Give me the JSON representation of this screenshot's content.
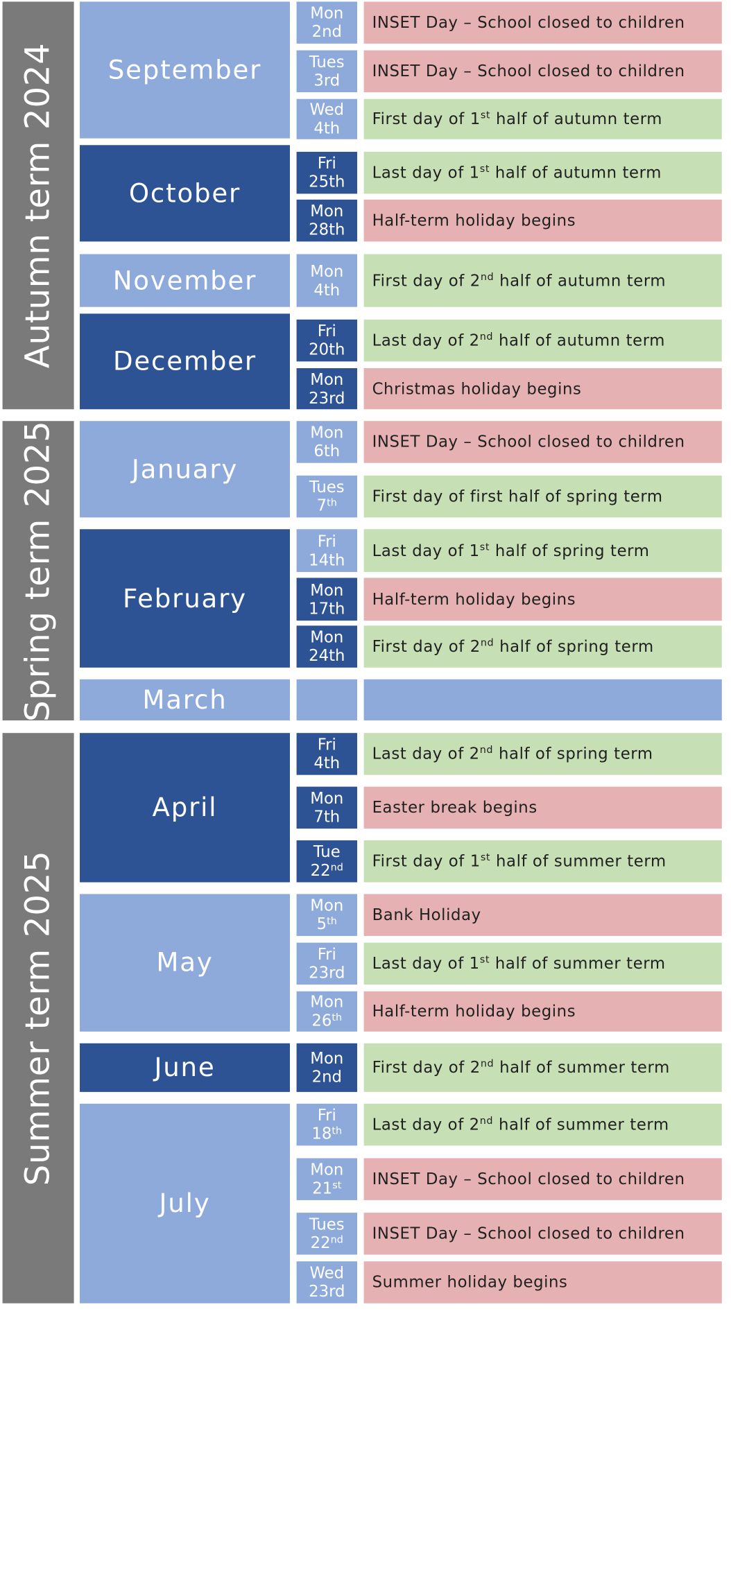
{
  "terms": [
    {
      "label": "Autumn term 2024"
    },
    {
      "label": "Spring term 2025"
    },
    {
      "label": "Summer term 2025"
    }
  ],
  "months": [
    "September",
    "October",
    "November",
    "December",
    "January",
    "February",
    "March",
    "April",
    "May",
    "June",
    "July"
  ],
  "rows": [
    {
      "dow": "Mon",
      "date": "2nd",
      "sup": "",
      "event": [
        "INSET Day – School closed to children"
      ],
      "type": "holiday"
    },
    {
      "dow": "Tues",
      "date": "3rd",
      "sup": "",
      "event": [
        "INSET Day – School closed to children"
      ],
      "type": "holiday"
    },
    {
      "dow": "Wed",
      "date": "4th",
      "sup": "",
      "event": [
        "First day of 1",
        "st",
        " half of autumn term"
      ],
      "type": "school"
    },
    {
      "dow": "Fri",
      "date": "25th",
      "sup": "",
      "event": [
        "Last day of 1",
        "st",
        " half of autumn term"
      ],
      "type": "school"
    },
    {
      "dow": "Mon",
      "date": "28th",
      "sup": "",
      "event": [
        "Half-term holiday begins"
      ],
      "type": "holiday"
    },
    {
      "dow": "Mon",
      "date": "4th",
      "sup": "",
      "event": [
        "First day of 2",
        "nd",
        " half of autumn term"
      ],
      "type": "school"
    },
    {
      "dow": "Fri",
      "date": "20th",
      "sup": "",
      "event": [
        "Last day of 2",
        "nd",
        " half of autumn term"
      ],
      "type": "school"
    },
    {
      "dow": "Mon",
      "date": "23rd",
      "sup": "",
      "event": [
        "Christmas holiday begins"
      ],
      "type": "holiday"
    },
    {
      "dow": "Mon",
      "date": "6th",
      "sup": "",
      "event": [
        "INSET Day – School closed to children"
      ],
      "type": "holiday"
    },
    {
      "dow": "Tues",
      "date": "7",
      "sup": "th",
      "event": [
        "First day of first half of spring term"
      ],
      "type": "school"
    },
    {
      "dow": "Fri",
      "date": "14th",
      "sup": "",
      "event": [
        "Last day of 1",
        "st",
        " half of spring term"
      ],
      "type": "school"
    },
    {
      "dow": "Mon",
      "date": "17th",
      "sup": "",
      "event": [
        "Half-term holiday begins"
      ],
      "type": "holiday"
    },
    {
      "dow": "Mon",
      "date": "24th",
      "sup": "",
      "event": [
        "First day of 2",
        "nd",
        " half of spring term"
      ],
      "type": "school"
    },
    {
      "dow": "",
      "date": "",
      "sup": "",
      "event": [
        ""
      ],
      "type": "blank"
    },
    {
      "dow": "Fri",
      "date": "4th",
      "sup": "",
      "event": [
        "Last day of 2",
        "nd",
        " half of spring term"
      ],
      "type": "school"
    },
    {
      "dow": "Mon",
      "date": "7th",
      "sup": "",
      "event": [
        "Easter break begins"
      ],
      "type": "holiday"
    },
    {
      "dow": "Tue",
      "date": "22",
      "sup": "nd",
      "event": [
        "First day of 1",
        "st",
        " half of summer term"
      ],
      "type": "school"
    },
    {
      "dow": "Mon",
      "date": "5",
      "sup": "th",
      "event": [
        "Bank Holiday"
      ],
      "type": "holiday"
    },
    {
      "dow": "Fri",
      "date": "23rd",
      "sup": "",
      "event": [
        "Last day of 1",
        "st",
        " half of summer term"
      ],
      "type": "school"
    },
    {
      "dow": "Mon",
      "date": "26",
      "sup": "th",
      "event": [
        "Half-term holiday begins"
      ],
      "type": "holiday"
    },
    {
      "dow": "Mon",
      "date": "2nd",
      "sup": "",
      "event": [
        "First day of 2",
        "nd",
        " half of summer term"
      ],
      "type": "school"
    },
    {
      "dow": "Fri",
      "date": "18",
      "sup": "th",
      "event": [
        "Last day of 2",
        "nd",
        " half of summer term"
      ],
      "type": "school"
    },
    {
      "dow": "Mon",
      "date": "21",
      "sup": "st",
      "event": [
        "INSET Day – School closed to children"
      ],
      "type": "holiday"
    },
    {
      "dow": "Tues",
      "date": "22",
      "sup": "nd",
      "event": [
        "INSET Day – School closed to children"
      ],
      "type": "holiday"
    },
    {
      "dow": "Wed",
      "date": "23rd",
      "sup": "",
      "event": [
        "Summer holiday begins"
      ],
      "type": "holiday"
    }
  ],
  "colors": {
    "term_band": "#7a7a7a",
    "month_light": "#8eaadb",
    "month_dark": "#2e5395",
    "school_day": "#c6dfb4",
    "holiday": "#e5b1b2",
    "blank": "#8eaadb"
  }
}
